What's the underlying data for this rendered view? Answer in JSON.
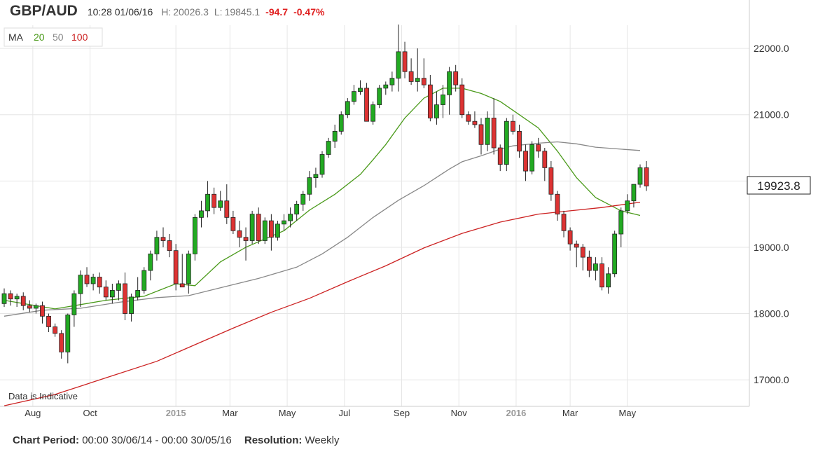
{
  "header": {
    "pair": "GBP/AUD",
    "timestamp": "10:28 01/06/16",
    "high_label": "H:",
    "high_value": "20026.3",
    "low_label": "L:",
    "low_value": "19845.1",
    "change": "-94.7",
    "change_pct": "-0.47%"
  },
  "legend": {
    "label": "MA",
    "items": [
      {
        "period": "20",
        "color": "#4a9a1a"
      },
      {
        "period": "50",
        "color": "#888888"
      },
      {
        "period": "100",
        "color": "#cc2222"
      }
    ]
  },
  "indicative_note": "Data is Indicative",
  "current_price_label": "19923.8",
  "footer": {
    "period_label": "Chart Period:",
    "period_value": "00:00 30/06/14 - 00:00 30/05/16",
    "resolution_label": "Resolution:",
    "resolution_value": "Weekly"
  },
  "colors": {
    "up": "#22aa22",
    "down": "#dd3333",
    "grid": "#e6e6e6",
    "axis": "#cccccc"
  },
  "chart_data": {
    "type": "candlestick",
    "title": "GBP/AUD",
    "ylim": [
      16600,
      22350
    ],
    "y_ticks": [
      {
        "value": 17000,
        "label": "17000.0"
      },
      {
        "value": 18000,
        "label": "18000.0"
      },
      {
        "value": 19000,
        "label": "19000.0"
      },
      {
        "value": 20000,
        "label": "20000.0"
      },
      {
        "value": 21000,
        "label": "21000.0"
      },
      {
        "value": 22000,
        "label": "22000.0"
      }
    ],
    "x_ticks": [
      {
        "index": 4.5,
        "label": "Aug",
        "bold": false
      },
      {
        "index": 13.5,
        "label": "Oct",
        "bold": false
      },
      {
        "index": 27.0,
        "label": "2015",
        "bold": true
      },
      {
        "index": 35.5,
        "label": "Mar",
        "bold": false
      },
      {
        "index": 44.5,
        "label": "May",
        "bold": false
      },
      {
        "index": 53.5,
        "label": "Jul",
        "bold": false
      },
      {
        "index": 62.5,
        "label": "Sep",
        "bold": false
      },
      {
        "index": 71.5,
        "label": "Nov",
        "bold": false
      },
      {
        "index": 80.5,
        "label": "2016",
        "bold": true
      },
      {
        "index": 89.0,
        "label": "Mar",
        "bold": false
      },
      {
        "index": 98.0,
        "label": "May",
        "bold": false
      }
    ],
    "candles": [
      [
        18150,
        18380,
        18100,
        18300
      ],
      [
        18300,
        18350,
        18120,
        18220
      ],
      [
        18220,
        18300,
        18100,
        18260
      ],
      [
        18260,
        18320,
        18050,
        18120
      ],
      [
        18120,
        18200,
        18020,
        18080
      ],
      [
        18080,
        18150,
        18000,
        18120
      ],
      [
        18120,
        18180,
        17850,
        17960
      ],
      [
        17960,
        18000,
        17720,
        17800
      ],
      [
        17800,
        17850,
        17650,
        17700
      ],
      [
        17700,
        17750,
        17320,
        17420
      ],
      [
        17420,
        18000,
        17250,
        17980
      ],
      [
        17980,
        18350,
        17800,
        18300
      ],
      [
        18300,
        18650,
        18100,
        18580
      ],
      [
        18580,
        18700,
        18400,
        18450
      ],
      [
        18450,
        18600,
        18350,
        18550
      ],
      [
        18550,
        18620,
        18300,
        18400
      ],
      [
        18400,
        18500,
        18200,
        18250
      ],
      [
        18250,
        18450,
        18150,
        18350
      ],
      [
        18350,
        18500,
        18200,
        18450
      ],
      [
        18450,
        18620,
        17900,
        18000
      ],
      [
        18000,
        18300,
        17880,
        18250
      ],
      [
        18250,
        18550,
        18200,
        18350
      ],
      [
        18350,
        18700,
        18300,
        18650
      ],
      [
        18650,
        18950,
        18500,
        18900
      ],
      [
        18900,
        19250,
        18800,
        19150
      ],
      [
        19150,
        19300,
        19000,
        19100
      ],
      [
        19100,
        19200,
        18850,
        18950
      ],
      [
        18950,
        19050,
        18350,
        18450
      ],
      [
        18450,
        18900,
        18400,
        18400
      ],
      [
        18450,
        18950,
        18300,
        18900
      ],
      [
        18900,
        19500,
        18800,
        19450
      ],
      [
        19450,
        19700,
        19300,
        19550
      ],
      [
        19550,
        20000,
        19450,
        19800
      ],
      [
        19800,
        19900,
        19500,
        19600
      ],
      [
        19600,
        19850,
        19550,
        19700
      ],
      [
        19700,
        19950,
        19350,
        19450
      ],
      [
        19450,
        19550,
        19200,
        19250
      ],
      [
        19250,
        19400,
        19000,
        19150
      ],
      [
        19150,
        19300,
        18800,
        19100
      ],
      [
        19100,
        19550,
        19050,
        19500
      ],
      [
        19500,
        19600,
        19050,
        19100
      ],
      [
        19100,
        19450,
        19050,
        19400
      ],
      [
        19400,
        19500,
        18950,
        19150
      ],
      [
        19150,
        19400,
        19100,
        19350
      ],
      [
        19350,
        19500,
        19250,
        19400
      ],
      [
        19400,
        19600,
        19300,
        19500
      ],
      [
        19500,
        19700,
        19400,
        19650
      ],
      [
        19650,
        19850,
        19550,
        19800
      ],
      [
        19800,
        20150,
        19700,
        20050
      ],
      [
        20050,
        20200,
        19900,
        20100
      ],
      [
        20100,
        20450,
        20050,
        20400
      ],
      [
        20400,
        20650,
        20350,
        20600
      ],
      [
        20600,
        20850,
        20500,
        20750
      ],
      [
        20750,
        21050,
        20700,
        21000
      ],
      [
        21000,
        21250,
        20950,
        21200
      ],
      [
        21200,
        21450,
        21150,
        21350
      ],
      [
        21350,
        21520,
        21300,
        21400
      ],
      [
        21400,
        21480,
        20900,
        20900
      ],
      [
        20900,
        21200,
        20850,
        21150
      ],
      [
        21150,
        21450,
        21100,
        21400
      ],
      [
        21400,
        21500,
        21300,
        21450
      ],
      [
        21450,
        21650,
        21350,
        21550
      ],
      [
        21550,
        22360,
        21350,
        21950
      ],
      [
        21950,
        22100,
        21550,
        21650
      ],
      [
        21650,
        21850,
        21450,
        21500
      ],
      [
        21500,
        22000,
        21350,
        21550
      ],
      [
        21550,
        21850,
        21400,
        21450
      ],
      [
        21450,
        21600,
        20900,
        20950
      ],
      [
        20950,
        21350,
        20850,
        21150
      ],
      [
        21150,
        21450,
        20950,
        21300
      ],
      [
        21300,
        21720,
        21000,
        21650
      ],
      [
        21650,
        21750,
        21350,
        21450
      ],
      [
        21450,
        21550,
        20950,
        21000
      ],
      [
        21000,
        21050,
        20850,
        20900
      ],
      [
        20900,
        21050,
        20800,
        20850
      ],
      [
        20850,
        20950,
        20400,
        20550
      ],
      [
        20550,
        21050,
        20450,
        20950
      ],
      [
        20950,
        21250,
        20400,
        20500
      ],
      [
        20500,
        20550,
        20150,
        20250
      ],
      [
        20250,
        20950,
        20150,
        20900
      ],
      [
        20900,
        21000,
        20700,
        20750
      ],
      [
        20750,
        20850,
        20350,
        20450
      ],
      [
        20450,
        20550,
        20000,
        20150
      ],
      [
        20150,
        20600,
        20100,
        20550
      ],
      [
        20550,
        20650,
        20350,
        20450
      ],
      [
        20450,
        20500,
        20000,
        20200
      ],
      [
        20200,
        20300,
        19700,
        19800
      ],
      [
        19800,
        19850,
        19400,
        19500
      ],
      [
        19500,
        19550,
        19150,
        19250
      ],
      [
        19250,
        19300,
        18950,
        19050
      ],
      [
        19050,
        19100,
        18700,
        19000
      ],
      [
        19000,
        19050,
        18650,
        18850
      ],
      [
        18850,
        18950,
        18550,
        18650
      ],
      [
        18650,
        18850,
        18500,
        18750
      ],
      [
        18750,
        18850,
        18350,
        18400
      ],
      [
        18400,
        18700,
        18300,
        18600
      ],
      [
        18600,
        19250,
        18550,
        19200
      ],
      [
        19200,
        19600,
        19000,
        19550
      ],
      [
        19550,
        19800,
        19500,
        19700
      ],
      [
        19700,
        19950,
        19600,
        19950
      ],
      [
        19950,
        20250,
        19900,
        20200
      ],
      [
        20200,
        20300,
        19850,
        19924
      ]
    ],
    "series": [
      {
        "name": "MA 20",
        "color": "#4a9a1a",
        "points": [
          [
            0,
            18200
          ],
          [
            8,
            18070
          ],
          [
            16,
            18200
          ],
          [
            22,
            18260
          ],
          [
            27,
            18450
          ],
          [
            30,
            18420
          ],
          [
            34,
            18780
          ],
          [
            38,
            19000
          ],
          [
            44,
            19250
          ],
          [
            48,
            19560
          ],
          [
            52,
            19800
          ],
          [
            56,
            20100
          ],
          [
            58,
            20320
          ],
          [
            60,
            20550
          ],
          [
            63,
            20950
          ],
          [
            66,
            21250
          ],
          [
            69,
            21400
          ],
          [
            72,
            21400
          ],
          [
            75,
            21320
          ],
          [
            78,
            21200
          ],
          [
            81,
            21000
          ],
          [
            84,
            20800
          ],
          [
            87,
            20450
          ],
          [
            90,
            20050
          ],
          [
            93,
            19750
          ],
          [
            97,
            19550
          ],
          [
            100,
            19480
          ]
        ]
      },
      {
        "name": "MA 50",
        "color": "#888888",
        "points": [
          [
            0,
            17960
          ],
          [
            6,
            18050
          ],
          [
            12,
            18080
          ],
          [
            18,
            18170
          ],
          [
            24,
            18240
          ],
          [
            29,
            18270
          ],
          [
            34,
            18390
          ],
          [
            40,
            18530
          ],
          [
            46,
            18700
          ],
          [
            50,
            18900
          ],
          [
            54,
            19150
          ],
          [
            58,
            19450
          ],
          [
            62,
            19710
          ],
          [
            66,
            19930
          ],
          [
            70,
            20180
          ],
          [
            72,
            20290
          ],
          [
            75,
            20380
          ],
          [
            78,
            20480
          ],
          [
            80,
            20530
          ],
          [
            84,
            20570
          ],
          [
            87,
            20590
          ],
          [
            90,
            20560
          ],
          [
            93,
            20510
          ],
          [
            97,
            20480
          ],
          [
            100,
            20460
          ]
        ]
      },
      {
        "name": "MA 100",
        "color": "#cc2222",
        "points": [
          [
            0,
            16610
          ],
          [
            8,
            16780
          ],
          [
            16,
            17030
          ],
          [
            24,
            17280
          ],
          [
            30,
            17530
          ],
          [
            36,
            17780
          ],
          [
            42,
            18020
          ],
          [
            48,
            18230
          ],
          [
            54,
            18480
          ],
          [
            60,
            18720
          ],
          [
            66,
            18990
          ],
          [
            72,
            19210
          ],
          [
            78,
            19380
          ],
          [
            84,
            19500
          ],
          [
            89,
            19550
          ],
          [
            94,
            19600
          ],
          [
            100,
            19680
          ]
        ]
      }
    ]
  }
}
